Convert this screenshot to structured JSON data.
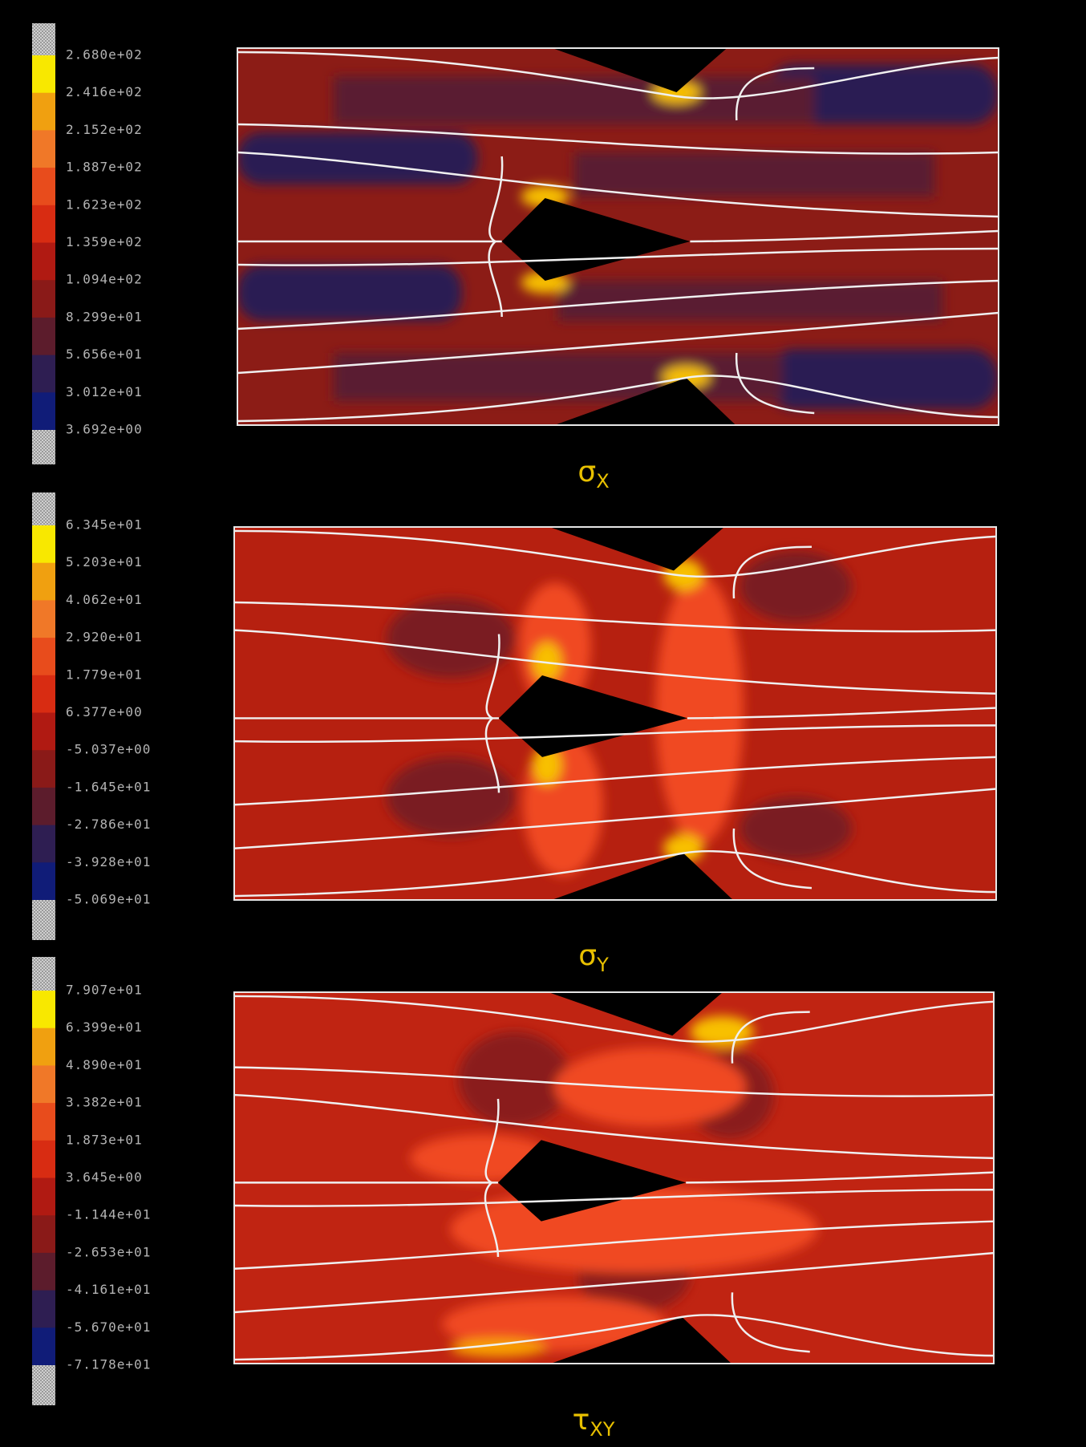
{
  "panels": [
    {
      "title": {
        "symbol": "σ",
        "subscript": "X"
      },
      "colorbar_labels": [
        "2.680e+02",
        "2.416e+02",
        "2.152e+02",
        "1.887e+02",
        "1.623e+02",
        "1.359e+02",
        "1.094e+02",
        "8.299e+01",
        "5.656e+01",
        "3.012e+01",
        "3.692e+00"
      ]
    },
    {
      "title": {
        "symbol": "σ",
        "subscript": "Y"
      },
      "colorbar_labels": [
        "6.345e+01",
        "5.203e+01",
        "4.062e+01",
        "2.920e+01",
        "1.779e+01",
        "6.377e+00",
        "-5.037e+00",
        "-1.645e+01",
        "-2.786e+01",
        "-3.928e+01",
        "-5.069e+01"
      ]
    },
    {
      "title": {
        "symbol": "τ",
        "subscript": "XY"
      },
      "colorbar_labels": [
        "7.907e+01",
        "6.399e+01",
        "4.890e+01",
        "3.382e+01",
        "1.873e+01",
        "3.645e+00",
        "-1.144e+01",
        "-2.653e+01",
        "-4.161e+01",
        "-5.670e+01",
        "-7.178e+01"
      ]
    }
  ]
}
